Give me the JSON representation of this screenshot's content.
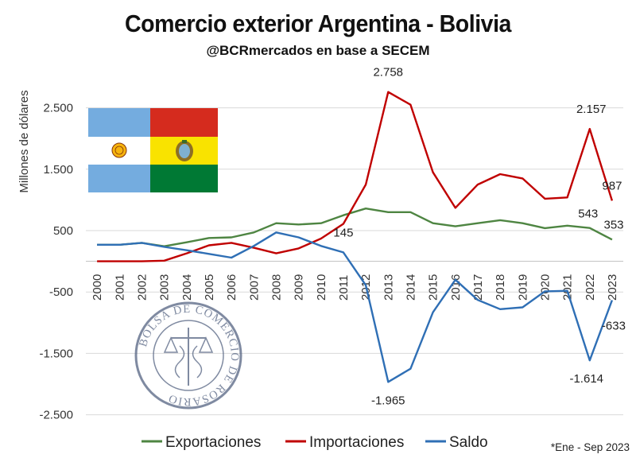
{
  "header": {
    "title": "Comercio exterior Argentina - Bolivia",
    "subtitle": "@BCRmercados en base a SECEM"
  },
  "footnote": "*Ene - Sep 2023",
  "seal_text": "BOLSA DE COMERCIO DE ROSARIO",
  "flags": {
    "argentina": [
      "#74ACDF",
      "#FFFFFF",
      "#74ACDF"
    ],
    "bolivia": [
      "#D52B1E",
      "#F9E300",
      "#007934"
    ]
  },
  "chart_data": {
    "type": "line",
    "title": "Comercio exterior Argentina - Bolivia",
    "ylabel": "Millones de dólares",
    "xlabel": "",
    "categories": [
      "2000",
      "2001",
      "2002",
      "2003",
      "2004",
      "2005",
      "2006",
      "2007",
      "2008",
      "2009",
      "2010",
      "2011",
      "2012",
      "2013",
      "2014",
      "2015",
      "2016",
      "2017",
      "2018",
      "2019",
      "2020",
      "2021",
      "2022",
      "2023"
    ],
    "y_ticks": [
      2500,
      1500,
      500,
      -500,
      -1500,
      -2500
    ],
    "y_tick_labels": [
      "2.500",
      "1.500",
      "500",
      "-500",
      "-1.500",
      "-2.500"
    ],
    "ylim": [
      -2500,
      2900
    ],
    "grid": true,
    "legend_position": "bottom",
    "series": [
      {
        "name": "Exportaciones",
        "color": "#4E8542",
        "values": [
          270,
          270,
          300,
          245,
          310,
          380,
          390,
          470,
          620,
          600,
          620,
          750,
          860,
          800,
          800,
          620,
          570,
          620,
          670,
          620,
          540,
          580,
          543,
          353
        ]
      },
      {
        "name": "Importaciones",
        "color": "#C00000",
        "values": [
          0,
          0,
          0,
          10,
          130,
          260,
          300,
          220,
          130,
          210,
          370,
          610,
          1250,
          2758,
          2550,
          1450,
          870,
          1250,
          1420,
          1350,
          1020,
          1040,
          2157,
          987
        ]
      },
      {
        "name": "Saldo",
        "color": "#2F6FB5",
        "values": [
          270,
          270,
          300,
          235,
          180,
          120,
          60,
          250,
          470,
          390,
          250,
          145,
          -390,
          -1965,
          -1750,
          -830,
          -300,
          -630,
          -780,
          -750,
          -490,
          -480,
          -1614,
          -633
        ]
      }
    ],
    "data_labels": [
      {
        "series": "Importaciones",
        "year": "2013",
        "text": "2.758"
      },
      {
        "series": "Importaciones",
        "year": "2022",
        "text": "2.157"
      },
      {
        "series": "Importaciones",
        "year": "2023",
        "text": "987"
      },
      {
        "series": "Exportaciones",
        "year": "2022",
        "text": "543"
      },
      {
        "series": "Exportaciones",
        "year": "2023",
        "text": "353"
      },
      {
        "series": "Saldo",
        "year": "2011",
        "text": "145"
      },
      {
        "series": "Saldo",
        "year": "2013",
        "text": "-1.965"
      },
      {
        "series": "Saldo",
        "year": "2022",
        "text": "-1.614"
      },
      {
        "series": "Saldo",
        "year": "2023",
        "text": "-633"
      }
    ]
  }
}
